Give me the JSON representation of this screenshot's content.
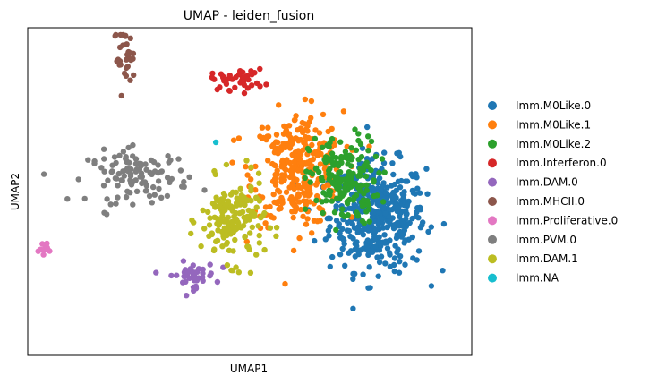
{
  "chart_data": {
    "type": "scatter",
    "title": "UMAP - leiden_fusion",
    "xlabel": "UMAP1",
    "ylabel": "UMAP2",
    "xlim": [
      -5.2,
      13.2
    ],
    "ylim": [
      -3.4,
      10.5
    ],
    "ticks": "none",
    "grid": false,
    "legend_position": "right-outside",
    "series": [
      {
        "name": "Imm.M0Like.0",
        "color": "#1f77b4",
        "region": {
          "center": [
            9.3,
            2.5
          ],
          "spread": [
            1.8,
            2.1
          ],
          "count": 420
        }
      },
      {
        "name": "Imm.M0Like.1",
        "color": "#ff7f0e",
        "region": {
          "center": [
            6.0,
            4.5
          ],
          "spread": [
            1.7,
            2.2
          ],
          "count": 320
        }
      },
      {
        "name": "Imm.M0Like.2",
        "color": "#2ca02c",
        "region": {
          "center": [
            7.9,
            4.0
          ],
          "spread": [
            1.3,
            1.7
          ],
          "count": 180
        }
      },
      {
        "name": "Imm.Interferon.0",
        "color": "#d62728",
        "region": {
          "center": [
            3.5,
            8.3
          ],
          "spread": [
            1.0,
            0.4
          ],
          "count": 40
        }
      },
      {
        "name": "Imm.DAM.0",
        "color": "#9467bd",
        "region": {
          "center": [
            1.6,
            0.0
          ],
          "spread": [
            0.9,
            0.5
          ],
          "count": 45
        }
      },
      {
        "name": "Imm.MHCII.0",
        "color": "#8c564b",
        "region": {
          "center": [
            -1.2,
            9.2
          ],
          "spread": [
            0.4,
            1.1
          ],
          "count": 30
        }
      },
      {
        "name": "Imm.Proliferative.0",
        "color": "#e377c2",
        "region": {
          "center": [
            -4.4,
            1.1
          ],
          "spread": [
            0.3,
            0.3
          ],
          "count": 14
        }
      },
      {
        "name": "Imm.PVM.0",
        "color": "#7f7f7f",
        "region": {
          "center": [
            -0.6,
            4.2
          ],
          "spread": [
            1.9,
            1.0
          ],
          "count": 110
        }
      },
      {
        "name": "Imm.DAM.1",
        "color": "#bcbd22",
        "region": {
          "center": [
            3.3,
            2.3
          ],
          "spread": [
            1.2,
            1.6
          ],
          "count": 160
        }
      },
      {
        "name": "Imm.NA",
        "color": "#17becf",
        "region": {
          "center": [
            2.6,
            5.6
          ],
          "spread": [
            0.1,
            0.1
          ],
          "count": 1
        }
      }
    ]
  }
}
